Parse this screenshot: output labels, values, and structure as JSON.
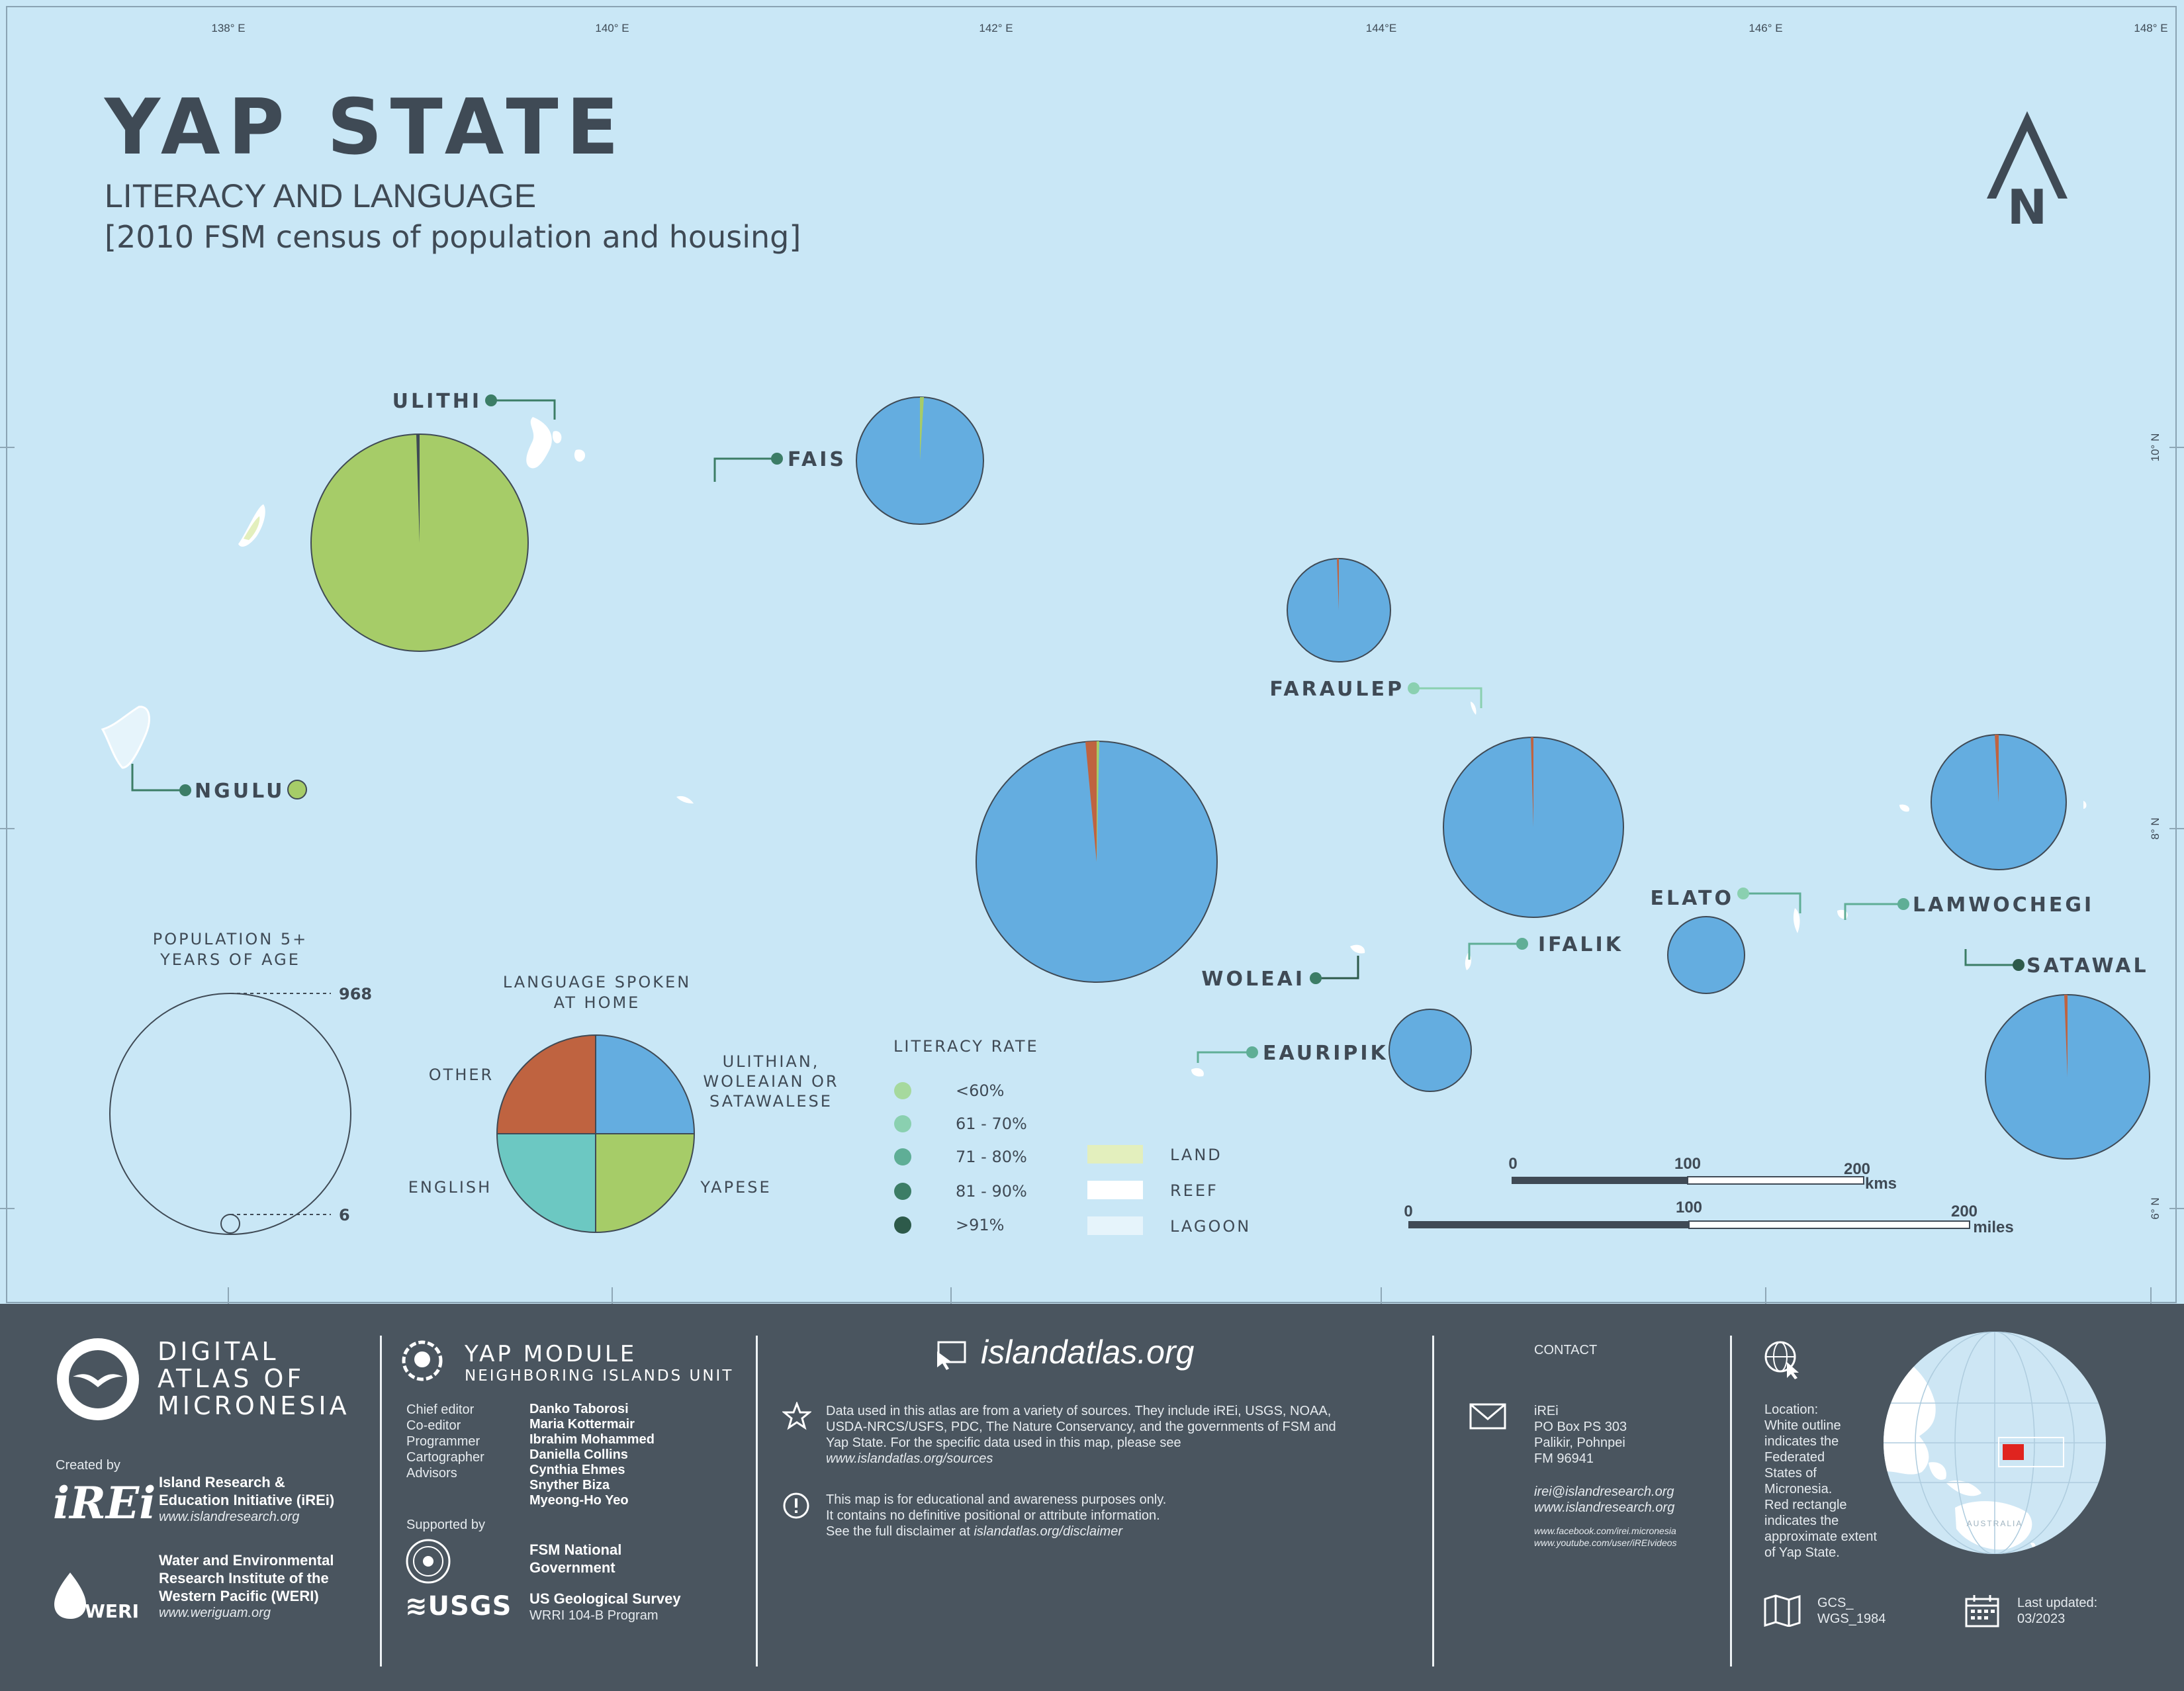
{
  "map": {
    "title": "YAP STATE",
    "subtitle": "LITERACY AND LANGUAGE",
    "source": "[2010 FSM census of population and housing]",
    "north_label": "N",
    "graticule": {
      "lon_labels": [
        "138° E",
        "140° E",
        "142° E",
        "144°E",
        "146° E",
        "148° E"
      ],
      "lat_labels": [
        "10° N",
        "8° N",
        "6° N"
      ]
    },
    "islands": [
      {
        "name": "ULITHI",
        "literacy_class": "81 - 90%",
        "language_shares": {
          "ulithian_woleaian_satawalese": 0.005,
          "yapese": 0.99,
          "english": 0.002,
          "other": 0.003
        },
        "size_rank": "large"
      },
      {
        "name": "FAIS",
        "literacy_class": "81 - 90%",
        "language_shares": {
          "ulithian_woleaian_satawalese": 0.99,
          "yapese": 0.005,
          "english": 0.0,
          "other": 0.005
        },
        "size_rank": "small"
      },
      {
        "name": "NGULU",
        "literacy_class": "81 - 90%",
        "language_shares": {
          "ulithian_woleaian_satawalese": 0.0,
          "yapese": 1.0,
          "english": 0.0,
          "other": 0.0
        },
        "size_rank": "tiny"
      },
      {
        "name": "FARAULEP",
        "literacy_class": "61 - 70%",
        "language_shares": {
          "ulithian_woleaian_satawalese": 0.995,
          "yapese": 0.0,
          "english": 0.0,
          "other": 0.005
        },
        "size_rank": "small"
      },
      {
        "name": "WOLEAI",
        "literacy_class": "81 - 90%",
        "language_shares": {
          "ulithian_woleaian_satawalese": 0.975,
          "yapese": 0.004,
          "english": 0.003,
          "other": 0.018
        },
        "size_rank": "largest"
      },
      {
        "name": "IFALIK",
        "literacy_class": "71 - 80%",
        "language_shares": {
          "ulithian_woleaian_satawalese": 0.995,
          "yapese": 0.0,
          "english": 0.0,
          "other": 0.005
        },
        "size_rank": "large"
      },
      {
        "name": "ELATO",
        "literacy_class": "71 - 80%",
        "language_shares": {
          "ulithian_woleaian_satawalese": 1.0,
          "yapese": 0.0,
          "english": 0.0,
          "other": 0.0
        },
        "size_rank": "small"
      },
      {
        "name": "LAMWOCHEGI",
        "literacy_class": "71 - 80%",
        "language_shares": {
          "ulithian_woleaian_satawalese": 0.99,
          "yapese": 0.0,
          "english": 0.0,
          "other": 0.01
        },
        "size_rank": "medium"
      },
      {
        "name": "SATAWAL",
        "literacy_class": "81 - 90%",
        "language_shares": {
          "ulithian_woleaian_satawalese": 0.99,
          "yapese": 0.0,
          "english": 0.0,
          "other": 0.01
        },
        "size_rank": "large"
      },
      {
        "name": "EAURIPIK",
        "literacy_class": "71 - 80%",
        "language_shares": {
          "ulithian_woleaian_satawalese": 1.0,
          "yapese": 0.0,
          "english": 0.0,
          "other": 0.0
        },
        "size_rank": "small"
      }
    ],
    "population_legend": {
      "title_line1": "POPULATION 5+",
      "title_line2": "YEARS OF AGE",
      "max_value": "968",
      "min_value": "6"
    },
    "language_legend": {
      "title_line1": "LANGUAGE SPOKEN",
      "title_line2": "AT HOME",
      "categories": [
        {
          "line1": "ULITHIAN,",
          "line2": "WOLEAIAN OR",
          "line3": "SATAWALESE",
          "color": "#64ade0"
        },
        {
          "line1": "YAPESE",
          "color": "#a6cc68"
        },
        {
          "line1": "ENGLISH",
          "color": "#6cc8c2"
        },
        {
          "line1": "OTHER",
          "color": "#bf6340"
        }
      ]
    },
    "literacy_legend": {
      "title": "LITERACY RATE",
      "classes": [
        {
          "label": "<60%",
          "color": "#a6d99d"
        },
        {
          "label": "61 - 70%",
          "color": "#8ad0b0"
        },
        {
          "label": "71 - 80%",
          "color": "#5fae96"
        },
        {
          "label": "81 - 90%",
          "color": "#3c7d66"
        },
        {
          "label": ">91%",
          "color": "#2d5a4a"
        }
      ]
    },
    "surface_legend": [
      {
        "label": "LAND",
        "color": "#e3efbd"
      },
      {
        "label": "REEF",
        "color": "#ffffff"
      },
      {
        "label": "LAGOON",
        "color": "#e6f4fb"
      }
    ],
    "scale": {
      "km": {
        "ticks": [
          "0",
          "100",
          "200"
        ],
        "unit": "kms"
      },
      "miles": {
        "ticks": [
          "0",
          "100",
          "200"
        ],
        "unit": "miles"
      }
    }
  },
  "footer": {
    "brand": {
      "line1": "DIGITAL",
      "line2": "ATLAS OF",
      "line3": "MICRONESIA"
    },
    "created_by": "Created by",
    "irei": {
      "logo": "iREi",
      "name_line1": "Island Research &",
      "name_line2": "Education Initiative (iREi)",
      "url": "www.islandresearch.org"
    },
    "weri": {
      "logo": "WERI",
      "name_line1": "Water and Environmental",
      "name_line2": "Research Institute of the",
      "name_line3": "Western Pacific (WERI)",
      "url": "www.weriguam.org"
    },
    "module": {
      "title": "YAP MODULE",
      "subtitle": "NEIGHBORING ISLANDS UNIT"
    },
    "credits": {
      "roles": [
        "Chief editor",
        "Co-editor",
        "Programmer",
        "Cartographer",
        "Advisors"
      ],
      "names": [
        "Danko Taborosi",
        "Maria Kottermair",
        "Ibrahim Mohammed",
        "Daniella Collins",
        "Cynthia Ehmes",
        "Snyther Biza",
        "Myeong-Ho Yeo"
      ]
    },
    "supported_by": "Supported by",
    "supporters": [
      {
        "line1": "FSM National",
        "line2": "Government"
      },
      {
        "line1": "US Geological Survey",
        "line2": "WRRI 104-B Program",
        "logo": "≋USGS"
      }
    ],
    "website": "islandatlas.org",
    "data_note": {
      "line1": "Data used in this atlas are from a variety of sources. They include iREi, USGS, NOAA,",
      "line2": "USDA-NRCS/USFS, PDC, The Nature Conservancy, and the governments of FSM and",
      "line3": "Yap State. For the specific data used in this map, please see",
      "link": "www.islandatlas.org/sources"
    },
    "disclaimer": {
      "line1": "This map is for educational and awareness purposes only.",
      "line2": "It contains no definitive positional or attribute information.",
      "line3": "See the full disclaimer at",
      "link": "islandatlas.org/disclaimer"
    },
    "contact": {
      "label": "CONTACT",
      "lines": [
        "iREi",
        "PO Box PS 303",
        "Palikir, Pohnpei",
        "FM 96941"
      ],
      "email": "irei@islandresearch.org",
      "web": "www.islandresearch.org",
      "facebook": "www.facebook.com/irei.micronesia",
      "youtube": "www.youtube.com/user/iREIvideos"
    },
    "location_note": [
      "Location:",
      "White outline",
      "indicates the",
      "Federated",
      "States of",
      "Micronesia.",
      "Red rectangle",
      "indicates the",
      "approximate extent",
      "of Yap State."
    ],
    "globe_label": "AUSTRALIA",
    "projection": {
      "line1": "GCS_",
      "line2": "WGS_1984"
    },
    "updated": {
      "line1": "Last updated:",
      "line2": "03/2023"
    }
  }
}
